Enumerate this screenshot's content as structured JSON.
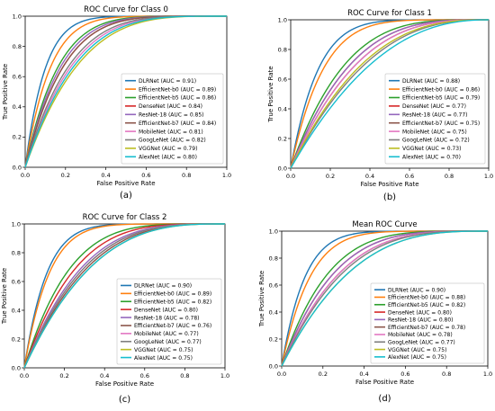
{
  "colors": [
    "#1f77b4",
    "#ff7f0e",
    "#2ca02c",
    "#d62728",
    "#9467bd",
    "#8c564b",
    "#e377c2",
    "#7f7f7f",
    "#bcbd22",
    "#17becf"
  ],
  "chart_data": [
    {
      "type": "line",
      "panel_label": "(a)",
      "title": "ROC Curve for Class 0",
      "xlabel": "False Positive Rate",
      "ylabel": "True Positive Rate",
      "xlim": [
        0,
        1
      ],
      "ylim": [
        0,
        1
      ],
      "xticks": [
        "0.0",
        "0.2",
        "0.4",
        "0.6",
        "0.8",
        "1.0"
      ],
      "yticks": [
        "0.0",
        "0.2",
        "0.4",
        "0.6",
        "0.8",
        "1.0"
      ],
      "legend_position": "lower right",
      "grid": false,
      "series": [
        {
          "name": "DLRNet (AUC = 0.91)",
          "auc": 0.91
        },
        {
          "name": "EfficientNet-b0 (AUC = 0.89)",
          "auc": 0.89
        },
        {
          "name": "EfficientNet-b5 (AUC = 0.86)",
          "auc": 0.86
        },
        {
          "name": "DenseNet (AUC = 0.84)",
          "auc": 0.84
        },
        {
          "name": "ResNet-18 (AUC = 0.85)",
          "auc": 0.85
        },
        {
          "name": "EfficientNet-b7 (AUC = 0.84)",
          "auc": 0.84
        },
        {
          "name": "MobileNet (AUC = 0.81)",
          "auc": 0.81
        },
        {
          "name": "GoogLeNet (AUC = 0.82)",
          "auc": 0.82
        },
        {
          "name": "VGGNet (AUC = 0.79)",
          "auc": 0.79
        },
        {
          "name": "AlexNet (AUC = 0.80)",
          "auc": 0.8
        }
      ]
    },
    {
      "type": "line",
      "panel_label": "(b)",
      "title": "ROC Curve for Class 1",
      "xlabel": "False Positive Rate",
      "ylabel": "True Positive Rate",
      "xlim": [
        0,
        1
      ],
      "ylim": [
        0,
        1
      ],
      "xticks": [
        "0.0",
        "0.2",
        "0.4",
        "0.6",
        "0.8",
        "1.0"
      ],
      "yticks": [
        "0.0",
        "0.2",
        "0.4",
        "0.6",
        "0.8",
        "1.0"
      ],
      "legend_position": "lower right",
      "grid": false,
      "series": [
        {
          "name": "DLRNet (AUC = 0.88)",
          "auc": 0.88
        },
        {
          "name": "EfficientNet-b0 (AUC = 0.86)",
          "auc": 0.86
        },
        {
          "name": "EfficientNet-b5 (AUC = 0.79)",
          "auc": 0.79
        },
        {
          "name": "DenseNet (AUC = 0.77)",
          "auc": 0.77
        },
        {
          "name": "ResNet-18 (AUC = 0.77)",
          "auc": 0.77
        },
        {
          "name": "EfficientNet-b7 (AUC = 0.75)",
          "auc": 0.75
        },
        {
          "name": "MobileNet (AUC = 0.75)",
          "auc": 0.75
        },
        {
          "name": "GoogLeNet (AUC = 0.72)",
          "auc": 0.72
        },
        {
          "name": "VGGNet (AUC = 0.73)",
          "auc": 0.73
        },
        {
          "name": "AlexNet (AUC = 0.70)",
          "auc": 0.7
        }
      ]
    },
    {
      "type": "line",
      "panel_label": "(c)",
      "title": "ROC Curve for Class 2",
      "xlabel": "False Positive Rate",
      "ylabel": "True Positive Rate",
      "xlim": [
        0,
        1
      ],
      "ylim": [
        0,
        1
      ],
      "xticks": [
        "0.0",
        "0.2",
        "0.4",
        "0.6",
        "0.8",
        "1.0"
      ],
      "yticks": [
        "0.0",
        "0.2",
        "0.4",
        "0.6",
        "0.8",
        "1.0"
      ],
      "legend_position": "lower right",
      "grid": false,
      "series": [
        {
          "name": "DLRNet (AUC = 0.90)",
          "auc": 0.9
        },
        {
          "name": "EfficientNet-b0 (AUC = 0.89)",
          "auc": 0.89
        },
        {
          "name": "EfficientNet-b5 (AUC = 0.82)",
          "auc": 0.82
        },
        {
          "name": "DenseNet (AUC = 0.80)",
          "auc": 0.8
        },
        {
          "name": "ResNet-18 (AUC = 0.78)",
          "auc": 0.78
        },
        {
          "name": "EfficientNet-b7 (AUC = 0.76)",
          "auc": 0.76
        },
        {
          "name": "MobileNet (AUC = 0.77)",
          "auc": 0.77
        },
        {
          "name": "GoogLeNet (AUC = 0.77)",
          "auc": 0.77
        },
        {
          "name": "VGGNet (AUC = 0.75)",
          "auc": 0.75
        },
        {
          "name": "AlexNet (AUC = 0.75)",
          "auc": 0.75
        }
      ]
    },
    {
      "type": "line",
      "panel_label": "(d)",
      "title": "Mean ROC Curve",
      "xlabel": "False Positive Rate",
      "ylabel": "True Positive Rate",
      "xlim": [
        0,
        1
      ],
      "ylim": [
        0,
        1
      ],
      "xticks": [
        "0.0",
        "0.2",
        "0.4",
        "0.6",
        "0.8",
        "1.0"
      ],
      "yticks": [
        "0.0",
        "0.2",
        "0.4",
        "0.6",
        "0.8",
        "1.0"
      ],
      "legend_position": "lower right",
      "grid": false,
      "series": [
        {
          "name": "DLRNet (AUC = 0.90)",
          "auc": 0.9
        },
        {
          "name": "EfficientNet-b0 (AUC = 0.88)",
          "auc": 0.88
        },
        {
          "name": "EfficientNet-b5 (AUC = 0.82)",
          "auc": 0.82
        },
        {
          "name": "DenseNet (AUC = 0.80)",
          "auc": 0.8
        },
        {
          "name": "ResNet-18 (AUC = 0.80)",
          "auc": 0.8
        },
        {
          "name": "EfficientNet-b7 (AUC = 0.78)",
          "auc": 0.78
        },
        {
          "name": "MobileNet (AUC = 0.78)",
          "auc": 0.78
        },
        {
          "name": "GoogLeNet (AUC = 0.77)",
          "auc": 0.77
        },
        {
          "name": "VGGNet (AUC = 0.75)",
          "auc": 0.75
        },
        {
          "name": "AlexNet (AUC = 0.75)",
          "auc": 0.75
        }
      ]
    }
  ]
}
